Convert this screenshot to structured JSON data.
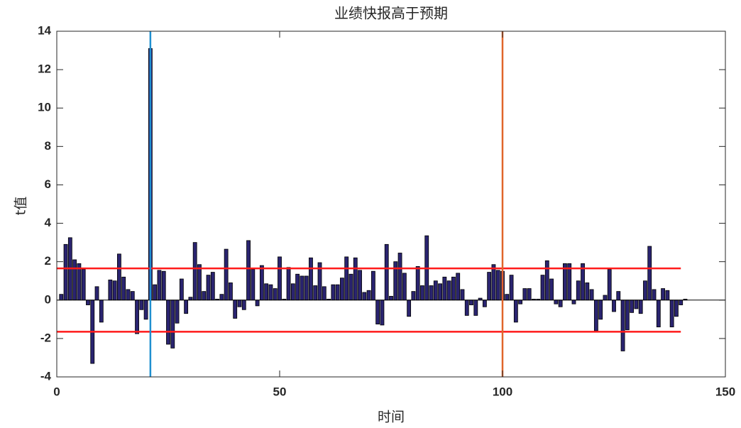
{
  "chart_data": {
    "type": "bar",
    "title": "业绩快报高于预期",
    "x_label": "时间",
    "y_label": "t值",
    "x": [
      1,
      2,
      3,
      4,
      5,
      6,
      7,
      8,
      9,
      10,
      11,
      12,
      13,
      14,
      15,
      16,
      17,
      18,
      19,
      20,
      21,
      22,
      23,
      24,
      25,
      26,
      27,
      28,
      29,
      30,
      31,
      32,
      33,
      34,
      35,
      36,
      37,
      38,
      39,
      40,
      41,
      42,
      43,
      44,
      45,
      46,
      47,
      48,
      49,
      50,
      51,
      52,
      53,
      54,
      55,
      56,
      57,
      58,
      59,
      60,
      61,
      62,
      63,
      64,
      65,
      66,
      67,
      68,
      69,
      70,
      71,
      72,
      73,
      74,
      75,
      76,
      77,
      78,
      79,
      80,
      81,
      82,
      83,
      84,
      85,
      86,
      87,
      88,
      89,
      90,
      91,
      92,
      93,
      94,
      95,
      96,
      97,
      98,
      99,
      100,
      101,
      102,
      103,
      104,
      105,
      106,
      107,
      108,
      109,
      110,
      111,
      112,
      113,
      114,
      115,
      116,
      117,
      118,
      119,
      120,
      121,
      122,
      123,
      124,
      125,
      126,
      127,
      128,
      129,
      130,
      131,
      132,
      133,
      134,
      135,
      136,
      137,
      138,
      139,
      140,
      141
    ],
    "values": [
      0.3,
      2.9,
      3.25,
      2.1,
      1.9,
      1.6,
      -0.25,
      -3.3,
      0.7,
      -1.15,
      0,
      1.05,
      1.0,
      2.4,
      1.2,
      0.55,
      0.45,
      -1.75,
      -0.5,
      -1.0,
      13.1,
      0.8,
      1.55,
      1.5,
      -2.3,
      -2.5,
      -1.2,
      1.1,
      -0.7,
      0.15,
      3.0,
      1.85,
      0.45,
      1.3,
      1.45,
      0.05,
      0.3,
      2.65,
      0.9,
      -0.95,
      -0.35,
      -0.5,
      3.1,
      1.6,
      -0.3,
      1.8,
      0.85,
      0.8,
      0.6,
      2.25,
      0.05,
      1.7,
      0.85,
      1.35,
      1.25,
      1.25,
      2.2,
      0.75,
      1.95,
      0.7,
      0.05,
      0.8,
      0.8,
      1.15,
      2.25,
      1.35,
      2.2,
      1.55,
      0.4,
      0.5,
      1.5,
      -1.25,
      -1.3,
      2.9,
      0.2,
      2.0,
      2.45,
      1.4,
      -0.85,
      0.45,
      1.75,
      0.75,
      3.35,
      0.75,
      1.0,
      0.85,
      1.2,
      1.0,
      1.2,
      1.4,
      0.55,
      -0.8,
      -0.25,
      -0.8,
      0.1,
      -0.35,
      1.45,
      1.85,
      1.55,
      1.5,
      0.3,
      1.3,
      -1.15,
      -0.2,
      0.6,
      0.6,
      0.05,
      0.05,
      1.3,
      2.05,
      1.1,
      -0.2,
      -0.35,
      1.9,
      1.9,
      -0.2,
      1.0,
      1.9,
      0.9,
      0.55,
      -1.6,
      -1.0,
      0.25,
      1.6,
      -0.6,
      0.45,
      -2.65,
      -1.55,
      -0.65,
      -0.45,
      -0.7,
      1.0,
      2.8,
      0.55,
      -1.4,
      0.6,
      0.5,
      -1.4,
      -0.85,
      -0.25,
      0.05
    ],
    "color": "#2a2470",
    "xlim": [
      0,
      150
    ],
    "xticks": [
      0,
      50,
      100,
      150
    ],
    "ylim": [
      -4,
      14
    ],
    "yticks": [
      -4,
      -2,
      0,
      2,
      4,
      6,
      8,
      10,
      12,
      14
    ],
    "vlines": [
      {
        "x": 21,
        "color": "#1f8fd0"
      },
      {
        "x": 100,
        "color": "#e0652a"
      }
    ],
    "hlines": [
      {
        "y": 1.65,
        "x": [
          0,
          140
        ],
        "color": "#ff1a1a"
      },
      {
        "y": -1.65,
        "x": [
          0,
          140
        ],
        "color": "#ff1a1a"
      }
    ]
  }
}
